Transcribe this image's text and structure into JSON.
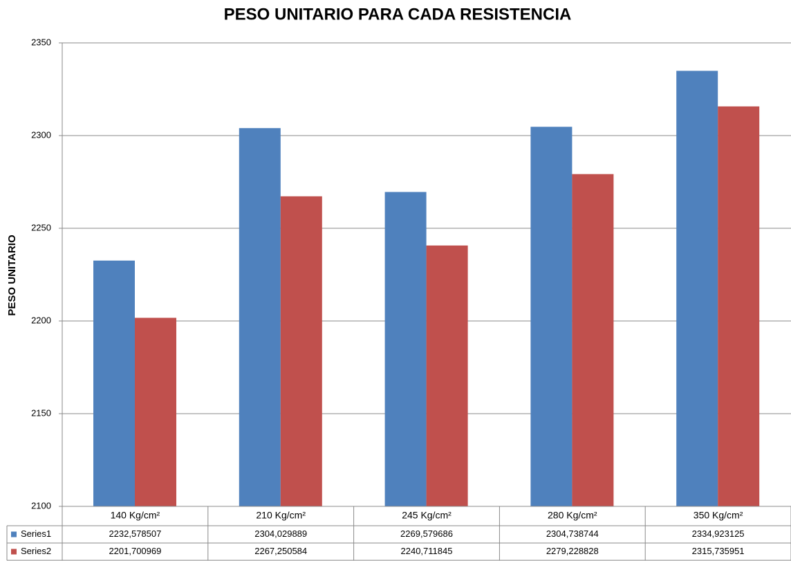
{
  "chart_data": {
    "type": "bar",
    "title": "PESO UNITARIO PARA CADA RESISTENCIA",
    "y_label": "PESO UNITARIO",
    "categories": [
      "140 Kg/cm²",
      "210 Kg/cm²",
      "245 Kg/cm²",
      "280 Kg/cm²",
      "350 Kg/cm²"
    ],
    "series": [
      {
        "name": "Series1",
        "color": "#4f81bd",
        "values": [
          2232.578507,
          2304.029889,
          2269.579686,
          2304.738744,
          2334.923125
        ],
        "value_labels": [
          "2232,578507",
          "2304,029889",
          "2269,579686",
          "2304,738744",
          "2334,923125"
        ]
      },
      {
        "name": "Series2",
        "color": "#c0504d",
        "values": [
          2201.700969,
          2267.250584,
          2240.711845,
          2279.228828,
          2315.735951
        ],
        "value_labels": [
          "2201,700969",
          "2267,250584",
          "2240,711845",
          "2279,228828",
          "2315,735951"
        ]
      }
    ],
    "ylim": [
      2100,
      2350
    ],
    "yticks": [
      2100,
      2150,
      2200,
      2250,
      2300,
      2350
    ],
    "grid": true
  }
}
